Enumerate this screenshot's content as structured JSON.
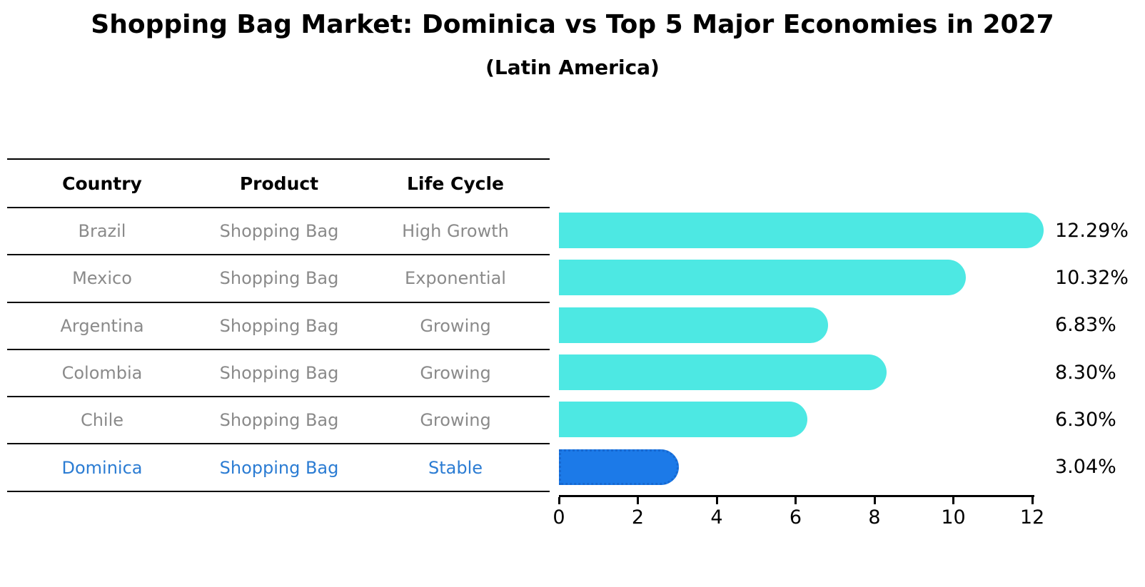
{
  "title": "Shopping Bag Market: Dominica vs Top 5 Major Economies in 2027",
  "subtitle": "(Latin America)",
  "table": {
    "headers": [
      "Country",
      "Product",
      "Life Cycle"
    ],
    "rows": [
      {
        "country": "Brazil",
        "product": "Shopping Bag",
        "life_cycle": "High Growth",
        "highlight": false
      },
      {
        "country": "Mexico",
        "product": "Shopping Bag",
        "life_cycle": "Exponential",
        "highlight": false
      },
      {
        "country": "Argentina",
        "product": "Shopping Bag",
        "life_cycle": "Growing",
        "highlight": false
      },
      {
        "country": "Colombia",
        "product": "Shopping Bag",
        "life_cycle": "Growing",
        "highlight": false
      },
      {
        "country": "Chile",
        "product": "Shopping Bag",
        "life_cycle": "Growing",
        "highlight": false
      },
      {
        "country": "Dominica",
        "product": "Shopping Bag",
        "life_cycle": "Stable",
        "highlight": true
      }
    ]
  },
  "chart_data": {
    "type": "bar",
    "orientation": "horizontal",
    "categories": [
      "Brazil",
      "Mexico",
      "Argentina",
      "Colombia",
      "Chile",
      "Dominica"
    ],
    "values": [
      12.29,
      10.32,
      6.83,
      8.3,
      6.3,
      3.04
    ],
    "value_labels": [
      "12.29%",
      "10.32%",
      "6.83%",
      "8.30%",
      "6.30%",
      "3.04%"
    ],
    "title": "Shopping Bag Market: Dominica vs Top 5 Major Economies in 2027 (Latin America)",
    "xlabel": "",
    "ylabel": "",
    "xlim": [
      0,
      12.29
    ],
    "x_ticks": [
      0,
      2,
      4,
      6,
      8,
      10,
      12
    ],
    "grid": false,
    "legend": "none",
    "highlight_index": 5
  },
  "colors": {
    "bar_default": "#4DE8E3",
    "bar_highlight": "#1C7AE8",
    "bar_highlight_border": "#1668D0",
    "highlight_text": "#2b7cd3",
    "body_text": "#8a8a8a",
    "heading_text": "#000000"
  }
}
